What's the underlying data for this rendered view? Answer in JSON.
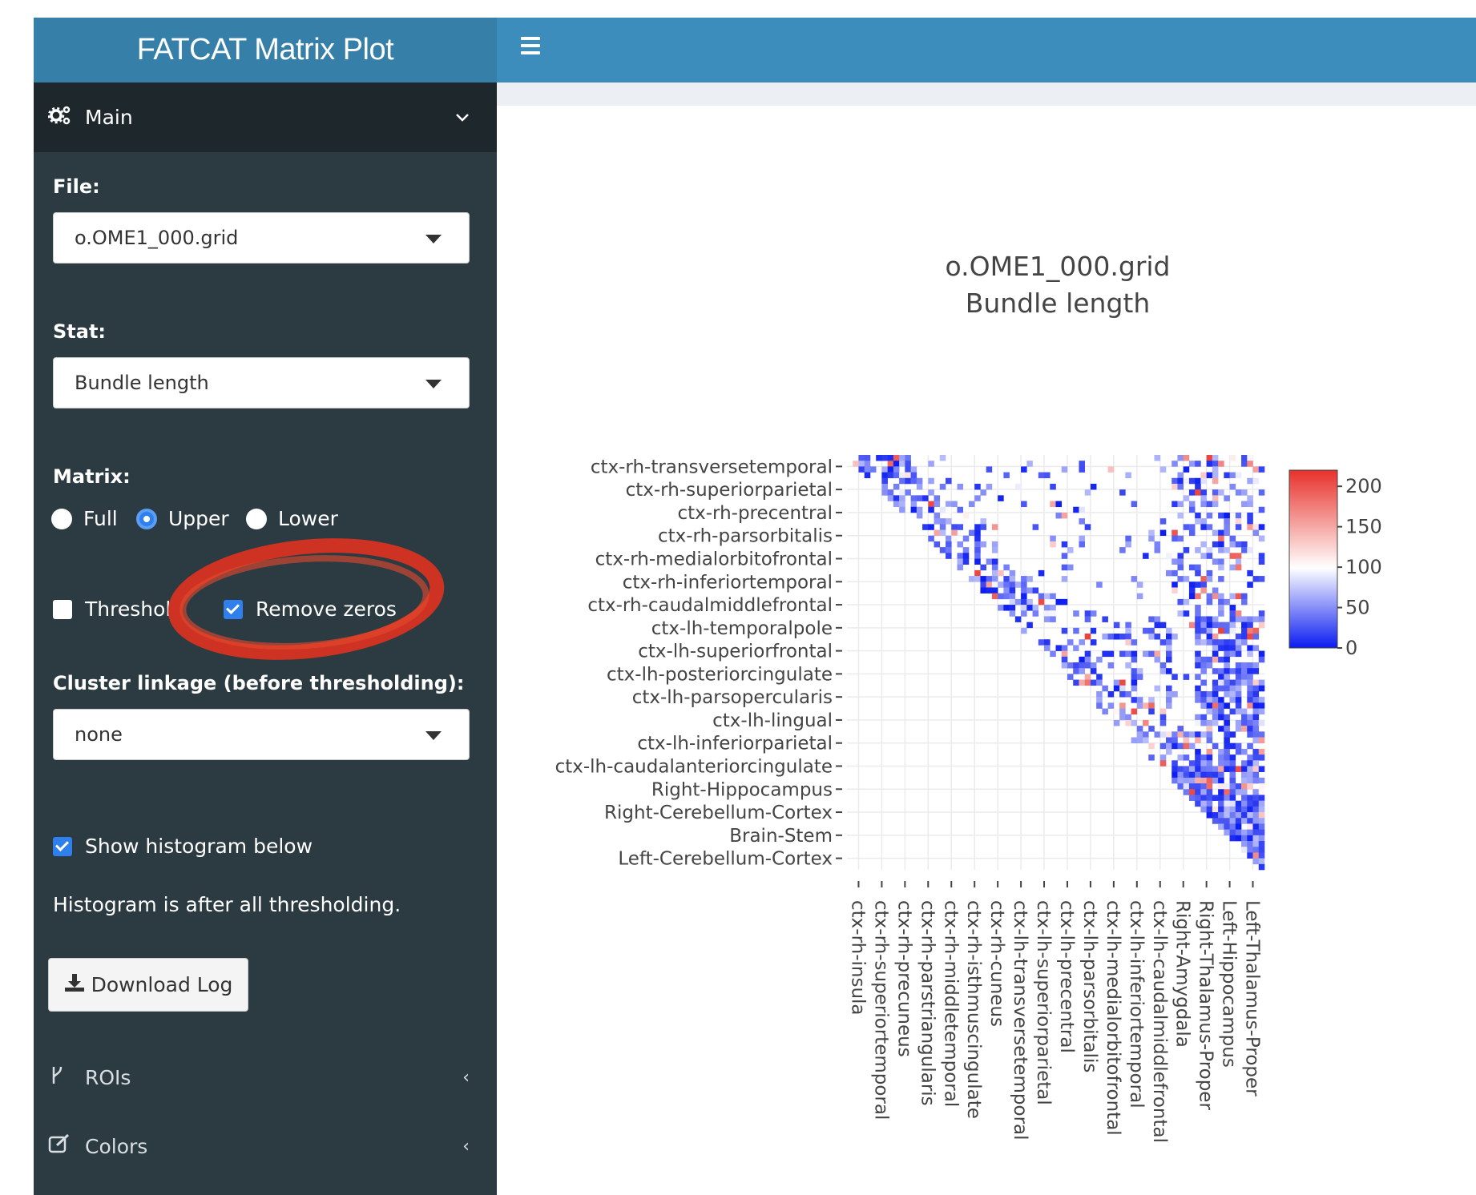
{
  "header": {
    "title": "FATCAT Matrix Plot",
    "toggle_icon": "hamburger-icon"
  },
  "sidebar": {
    "main_menu": {
      "label": "Main",
      "icon": "gears-icon",
      "chevron": "⌄"
    },
    "file": {
      "label": "File:",
      "value": "o.OME1_000.grid"
    },
    "stat": {
      "label": "Stat:",
      "value": "Bundle length"
    },
    "matrix": {
      "label": "Matrix:",
      "options": [
        "Full",
        "Upper",
        "Lower"
      ],
      "selected": "Upper"
    },
    "threshold": {
      "label": "Threshol",
      "checked": false
    },
    "remove_zeros": {
      "label": "Remove zeros",
      "checked": true
    },
    "cluster": {
      "label": "Cluster linkage (before thresholding):",
      "value": "none"
    },
    "histogram": {
      "label": "Show histogram below",
      "checked": true
    },
    "note": "Histogram is after all thresholding.",
    "download_label": "Download Log",
    "rois_label": "ROIs",
    "colors_label": "Colors",
    "collapsed_chevron": "‹"
  },
  "chart_data": {
    "type": "heatmap",
    "title": "o.OME1_000.grid",
    "subtitle": "Bundle length",
    "matrix_mode": "upper",
    "y_tick_labels": [
      "ctx-rh-transversetemporal",
      "ctx-rh-superiorparietal",
      "ctx-rh-precentral",
      "ctx-rh-parsorbitalis",
      "ctx-rh-medialorbitofrontal",
      "ctx-rh-inferiortemporal",
      "ctx-rh-caudalmiddlefrontal",
      "ctx-lh-temporalpole",
      "ctx-lh-superiorfrontal",
      "ctx-lh-posteriorcingulate",
      "ctx-lh-parsopercularis",
      "ctx-lh-lingual",
      "ctx-lh-inferiorparietal",
      "ctx-lh-caudalanteriorcingulate",
      "Right-Hippocampus",
      "Right-Cerebellum-Cortex",
      "Brain-Stem",
      "Left-Cerebellum-Cortex"
    ],
    "x_tick_labels": [
      "ctx-rh-insula",
      "ctx-rh-superiortemporal",
      "ctx-rh-precuneus",
      "ctx-rh-parstriangularis",
      "ctx-rh-middletemporal",
      "ctx-rh-isthmuscingulate",
      "ctx-rh-cuneus",
      "ctx-lh-transversetemporal",
      "ctx-lh-superiorparietal",
      "ctx-lh-precentral",
      "ctx-lh-parsorbitalis",
      "ctx-lh-medialorbitofrontal",
      "ctx-lh-inferiortemporal",
      "ctx-lh-caudalmiddlefrontal",
      "Right-Amygdala",
      "Right-Thalamus-Proper",
      "Left-Hippocampus",
      "Left-Thalamus-Proper"
    ],
    "colorbar": {
      "min": 0,
      "max": 220,
      "ticks": [
        "200",
        "150",
        "100",
        "50",
        "0"
      ],
      "colors": [
        "#0b1cf0",
        "#ffffff",
        "#e8312b"
      ]
    }
  }
}
